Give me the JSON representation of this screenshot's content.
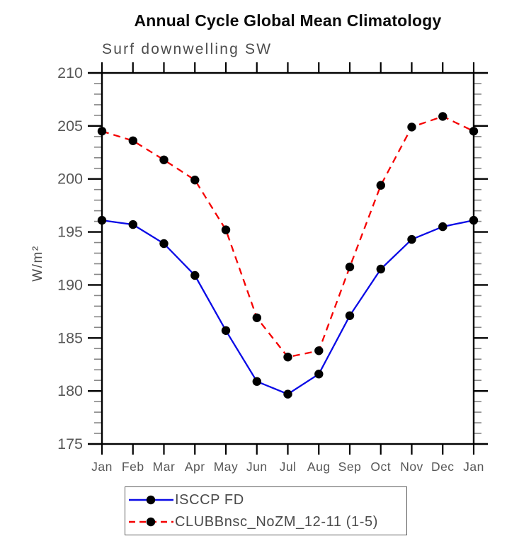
{
  "chart_data": {
    "type": "line",
    "title": "Annual Cycle Global Mean Climatology",
    "subtitle": "Surf downwelling SW",
    "ylabel": "W/m²",
    "xlabel": "",
    "x_categories": [
      "Jan",
      "Feb",
      "Mar",
      "Apr",
      "May",
      "Jun",
      "Jul",
      "Aug",
      "Sep",
      "Oct",
      "Nov",
      "Dec",
      "Jan"
    ],
    "ylim": [
      175,
      210
    ],
    "ytick_major_step": 5,
    "ytick_minor_step": 1,
    "ytick_labels": [
      "175",
      "180",
      "185",
      "190",
      "195",
      "200",
      "205",
      "210"
    ],
    "grid": false,
    "legend_position": "below-plot",
    "axis_color": "#000000",
    "tick_label_color": "#575757",
    "series": [
      {
        "name": "ISCCP FD",
        "line_style": "solid",
        "color": "#0a0ae6",
        "marker": "filled-circle",
        "marker_color": "#000000",
        "values": [
          196.1,
          195.7,
          193.9,
          190.9,
          185.7,
          180.9,
          179.7,
          181.6,
          187.1,
          191.5,
          194.3,
          195.5,
          196.1
        ]
      },
      {
        "name": "CLUBBnsc_NoZM_12-11 (1-5)",
        "line_style": "dashed",
        "color": "#f50000",
        "marker": "filled-circle",
        "marker_color": "#000000",
        "values": [
          204.5,
          203.6,
          201.8,
          199.9,
          195.2,
          186.9,
          183.2,
          183.8,
          191.7,
          199.4,
          204.9,
          205.9,
          204.5
        ]
      }
    ]
  }
}
